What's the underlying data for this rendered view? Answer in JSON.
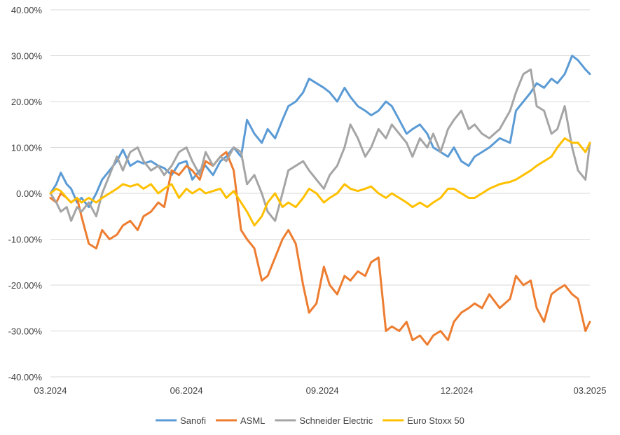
{
  "chart_data": {
    "type": "line",
    "title": "",
    "xlabel": "",
    "ylabel": "",
    "ylim": [
      -40,
      40
    ],
    "y_unit": "%",
    "yticks": [
      40,
      30,
      20,
      10,
      0,
      -10,
      -20,
      -30,
      -40
    ],
    "ytick_labels": [
      "40.00%",
      "30.00%",
      "20.00%",
      "10.00%",
      "0.00%",
      "-10.00%",
      "-20.00%",
      "-30.00%",
      "-40.00%"
    ],
    "xlim": [
      "2024-03-01",
      "2025-03-01"
    ],
    "xticks": [
      "2024-03-01",
      "2024-06-01",
      "2024-09-01",
      "2024-12-01",
      "2025-03-01"
    ],
    "xtick_labels": [
      "03.2024",
      "06.2024",
      "09.2024",
      "12.2024",
      "03.2025"
    ],
    "grid": "horizontal",
    "legend_position": "bottom",
    "series": [
      {
        "name": "Sanofi",
        "color": "#5B9BD5",
        "x": [
          "2024-03-01",
          "2024-03-05",
          "2024-03-08",
          "2024-03-12",
          "2024-03-15",
          "2024-03-19",
          "2024-03-22",
          "2024-03-27",
          "2024-04-01",
          "2024-04-05",
          "2024-04-10",
          "2024-04-15",
          "2024-04-19",
          "2024-04-24",
          "2024-04-29",
          "2024-05-03",
          "2024-05-08",
          "2024-05-13",
          "2024-05-17",
          "2024-05-22",
          "2024-05-27",
          "2024-06-01",
          "2024-06-05",
          "2024-06-10",
          "2024-06-14",
          "2024-06-19",
          "2024-06-24",
          "2024-06-28",
          "2024-07-03",
          "2024-07-08",
          "2024-07-12",
          "2024-07-17",
          "2024-07-22",
          "2024-07-26",
          "2024-07-31",
          "2024-08-05",
          "2024-08-09",
          "2024-08-14",
          "2024-08-19",
          "2024-08-23",
          "2024-08-28",
          "2024-09-02",
          "2024-09-06",
          "2024-09-11",
          "2024-09-16",
          "2024-09-20",
          "2024-09-25",
          "2024-09-30",
          "2024-10-04",
          "2024-10-09",
          "2024-10-14",
          "2024-10-18",
          "2024-10-23",
          "2024-10-28",
          "2024-11-01",
          "2024-11-06",
          "2024-11-11",
          "2024-11-15",
          "2024-11-20",
          "2024-11-25",
          "2024-11-29",
          "2024-12-04",
          "2024-12-09",
          "2024-12-13",
          "2024-12-18",
          "2024-12-23",
          "2024-12-30",
          "2025-01-06",
          "2025-01-10",
          "2025-01-15",
          "2025-01-20",
          "2025-01-24",
          "2025-01-29",
          "2025-02-03",
          "2025-02-07",
          "2025-02-12",
          "2025-02-17",
          "2025-02-21",
          "2025-02-26",
          "2025-03-01"
        ],
        "values": [
          0,
          2,
          4.5,
          2,
          1,
          -2,
          -1,
          -3,
          0,
          3,
          5,
          7,
          9.5,
          6,
          7,
          6.5,
          7,
          6,
          5.5,
          4,
          6.5,
          7,
          3,
          5,
          6,
          4,
          7,
          8,
          10,
          8,
          16,
          13,
          11,
          14,
          12,
          16,
          19,
          20,
          22,
          25,
          24,
          23,
          22,
          20,
          23,
          21,
          19,
          18,
          17,
          18,
          20,
          19,
          16,
          13,
          14,
          15,
          13,
          10,
          9,
          8,
          10,
          7,
          6,
          8,
          9,
          10,
          12,
          11,
          18,
          20,
          22,
          24,
          23,
          25,
          24,
          26,
          30,
          29,
          27,
          26
        ]
      },
      {
        "name": "ASML",
        "color": "#ED7D31",
        "x": [
          "2024-03-01",
          "2024-03-05",
          "2024-03-08",
          "2024-03-12",
          "2024-03-15",
          "2024-03-19",
          "2024-03-22",
          "2024-03-27",
          "2024-04-01",
          "2024-04-05",
          "2024-04-10",
          "2024-04-15",
          "2024-04-19",
          "2024-04-24",
          "2024-04-29",
          "2024-05-03",
          "2024-05-08",
          "2024-05-13",
          "2024-05-17",
          "2024-05-22",
          "2024-05-27",
          "2024-06-01",
          "2024-06-05",
          "2024-06-10",
          "2024-06-14",
          "2024-06-19",
          "2024-06-24",
          "2024-06-28",
          "2024-07-03",
          "2024-07-08",
          "2024-07-12",
          "2024-07-17",
          "2024-07-22",
          "2024-07-26",
          "2024-07-31",
          "2024-08-05",
          "2024-08-09",
          "2024-08-14",
          "2024-08-19",
          "2024-08-23",
          "2024-08-28",
          "2024-09-02",
          "2024-09-06",
          "2024-09-11",
          "2024-09-16",
          "2024-09-20",
          "2024-09-25",
          "2024-09-30",
          "2024-10-04",
          "2024-10-09",
          "2024-10-14",
          "2024-10-18",
          "2024-10-23",
          "2024-10-28",
          "2024-11-01",
          "2024-11-06",
          "2024-11-11",
          "2024-11-15",
          "2024-11-20",
          "2024-11-25",
          "2024-11-29",
          "2024-12-04",
          "2024-12-09",
          "2024-12-13",
          "2024-12-18",
          "2024-12-23",
          "2024-12-30",
          "2025-01-06",
          "2025-01-10",
          "2025-01-15",
          "2025-01-20",
          "2025-01-24",
          "2025-01-29",
          "2025-02-03",
          "2025-02-07",
          "2025-02-12",
          "2025-02-17",
          "2025-02-21",
          "2025-02-26",
          "2025-03-01"
        ],
        "values": [
          -1,
          -2,
          0,
          -1,
          -2,
          -1,
          -5,
          -11,
          -12,
          -8,
          -10,
          -9,
          -7,
          -6,
          -8,
          -5,
          -4,
          -2,
          -3,
          5,
          4,
          6,
          5,
          3,
          7,
          6,
          8,
          9,
          5,
          -8,
          -10,
          -12,
          -19,
          -18,
          -14,
          -10,
          -8,
          -11,
          -20,
          -26,
          -24,
          -16,
          -20,
          -22,
          -18,
          -19,
          -17,
          -18,
          -15,
          -14,
          -30,
          -29,
          -30,
          -28,
          -32,
          -31,
          -33,
          -31,
          -30,
          -32,
          -28,
          -26,
          -25,
          -24,
          -25,
          -22,
          -25,
          -23,
          -18,
          -20,
          -19,
          -25,
          -28,
          -22,
          -21,
          -20,
          -22,
          -23,
          -30,
          -28
        ]
      },
      {
        "name": "Schneider Electric",
        "color": "#A5A5A5",
        "x": [
          "2024-03-01",
          "2024-03-05",
          "2024-03-08",
          "2024-03-12",
          "2024-03-15",
          "2024-03-19",
          "2024-03-22",
          "2024-03-27",
          "2024-04-01",
          "2024-04-05",
          "2024-04-10",
          "2024-04-15",
          "2024-04-19",
          "2024-04-24",
          "2024-04-29",
          "2024-05-03",
          "2024-05-08",
          "2024-05-13",
          "2024-05-17",
          "2024-05-22",
          "2024-05-27",
          "2024-06-01",
          "2024-06-05",
          "2024-06-10",
          "2024-06-14",
          "2024-06-19",
          "2024-06-24",
          "2024-06-28",
          "2024-07-03",
          "2024-07-08",
          "2024-07-12",
          "2024-07-17",
          "2024-07-22",
          "2024-07-26",
          "2024-07-31",
          "2024-08-05",
          "2024-08-09",
          "2024-08-14",
          "2024-08-19",
          "2024-08-23",
          "2024-08-28",
          "2024-09-02",
          "2024-09-06",
          "2024-09-11",
          "2024-09-16",
          "2024-09-20",
          "2024-09-25",
          "2024-09-30",
          "2024-10-04",
          "2024-10-09",
          "2024-10-14",
          "2024-10-18",
          "2024-10-23",
          "2024-10-28",
          "2024-11-01",
          "2024-11-06",
          "2024-11-11",
          "2024-11-15",
          "2024-11-20",
          "2024-11-25",
          "2024-11-29",
          "2024-12-04",
          "2024-12-09",
          "2024-12-13",
          "2024-12-18",
          "2024-12-23",
          "2024-12-30",
          "2025-01-06",
          "2025-01-10",
          "2025-01-15",
          "2025-01-20",
          "2025-01-24",
          "2025-01-29",
          "2025-02-03",
          "2025-02-07",
          "2025-02-12",
          "2025-02-17",
          "2025-02-21",
          "2025-02-26",
          "2025-03-01"
        ],
        "values": [
          0,
          -2,
          -4,
          -3,
          -6,
          -3,
          -4,
          -2,
          -5,
          0,
          4,
          8,
          5,
          9,
          10,
          7,
          5,
          6,
          4,
          6,
          9,
          10,
          7,
          4,
          9,
          6,
          8,
          7,
          10,
          9,
          2,
          4,
          0,
          -4,
          -6,
          0,
          5,
          6,
          7,
          5,
          3,
          1,
          4,
          6,
          10,
          15,
          12,
          8,
          10,
          14,
          12,
          15,
          13,
          11,
          8,
          12,
          10,
          13,
          9,
          14,
          16,
          18,
          14,
          15,
          13,
          12,
          14,
          18,
          22,
          26,
          27,
          19,
          18,
          13,
          14,
          19,
          10,
          5,
          3,
          11
        ]
      },
      {
        "name": "Euro Stoxx 50",
        "color": "#FFC000",
        "x": [
          "2024-03-01",
          "2024-03-05",
          "2024-03-08",
          "2024-03-12",
          "2024-03-15",
          "2024-03-19",
          "2024-03-22",
          "2024-03-27",
          "2024-04-01",
          "2024-04-05",
          "2024-04-10",
          "2024-04-15",
          "2024-04-19",
          "2024-04-24",
          "2024-04-29",
          "2024-05-03",
          "2024-05-08",
          "2024-05-13",
          "2024-05-17",
          "2024-05-22",
          "2024-05-27",
          "2024-06-01",
          "2024-06-05",
          "2024-06-10",
          "2024-06-14",
          "2024-06-19",
          "2024-06-24",
          "2024-06-28",
          "2024-07-03",
          "2024-07-08",
          "2024-07-12",
          "2024-07-17",
          "2024-07-22",
          "2024-07-26",
          "2024-07-31",
          "2024-08-05",
          "2024-08-09",
          "2024-08-14",
          "2024-08-19",
          "2024-08-23",
          "2024-08-28",
          "2024-09-02",
          "2024-09-06",
          "2024-09-11",
          "2024-09-16",
          "2024-09-20",
          "2024-09-25",
          "2024-09-30",
          "2024-10-04",
          "2024-10-09",
          "2024-10-14",
          "2024-10-18",
          "2024-10-23",
          "2024-10-28",
          "2024-11-01",
          "2024-11-06",
          "2024-11-11",
          "2024-11-15",
          "2024-11-20",
          "2024-11-25",
          "2024-11-29",
          "2024-12-04",
          "2024-12-09",
          "2024-12-13",
          "2024-12-18",
          "2024-12-23",
          "2024-12-30",
          "2025-01-06",
          "2025-01-10",
          "2025-01-15",
          "2025-01-20",
          "2025-01-24",
          "2025-01-29",
          "2025-02-03",
          "2025-02-07",
          "2025-02-12",
          "2025-02-17",
          "2025-02-21",
          "2025-02-26",
          "2025-03-01"
        ],
        "values": [
          0,
          1,
          0.5,
          -1,
          -2,
          -1,
          -2,
          -1,
          -2,
          -1,
          0,
          1,
          2,
          1.5,
          2,
          1,
          2,
          0,
          1,
          2,
          -1,
          1,
          0,
          1,
          0,
          0.5,
          1,
          -1,
          0.5,
          -2,
          -4,
          -7,
          -5,
          -2,
          0,
          -3,
          -2,
          -3,
          -1,
          1,
          0,
          -2,
          -1,
          0,
          2,
          1,
          0.5,
          1,
          1.5,
          0,
          -1,
          0,
          -1,
          -2,
          -3,
          -2,
          -3,
          -2,
          -1,
          1,
          1,
          0,
          -1,
          -1,
          0,
          1,
          2,
          2.5,
          3,
          4,
          5,
          6,
          7,
          8,
          10,
          12,
          11,
          11,
          9,
          11
        ]
      }
    ]
  }
}
